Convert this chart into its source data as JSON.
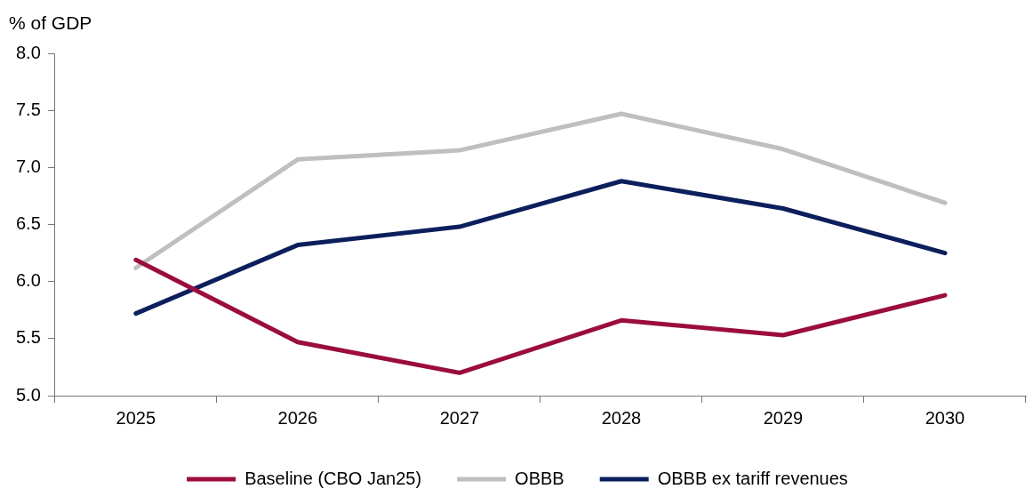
{
  "chart_data": {
    "type": "line",
    "ylabel": "% of GDP",
    "categories": [
      "2025",
      "2026",
      "2027",
      "2028",
      "2029",
      "2030"
    ],
    "ylim": [
      5.0,
      8.0
    ],
    "yticks": [
      {
        "value": 5,
        "label": "5.0"
      },
      {
        "value": 5.5,
        "label": "5.5"
      },
      {
        "value": 6,
        "label": "6.0"
      },
      {
        "value": 6.5,
        "label": "6.5"
      },
      {
        "value": 7,
        "label": "7.0"
      },
      {
        "value": 7.5,
        "label": "7.5"
      },
      {
        "value": 8,
        "label": "8.0"
      }
    ],
    "legend": "bottom",
    "series": [
      {
        "name": "Baseline (CBO Jan25)",
        "color": "#9b0d3f",
        "values": [
          6.19,
          5.47,
          5.2,
          5.66,
          5.53,
          5.88
        ]
      },
      {
        "name": "OBBB",
        "color": "#bdbfc1",
        "values": [
          6.12,
          7.07,
          7.15,
          7.47,
          7.16,
          6.69
        ]
      },
      {
        "name": "OBBB ex tariff revenues",
        "color": "#0c1f5c",
        "values": [
          5.72,
          6.32,
          6.48,
          6.88,
          6.64,
          6.25
        ]
      }
    ]
  }
}
